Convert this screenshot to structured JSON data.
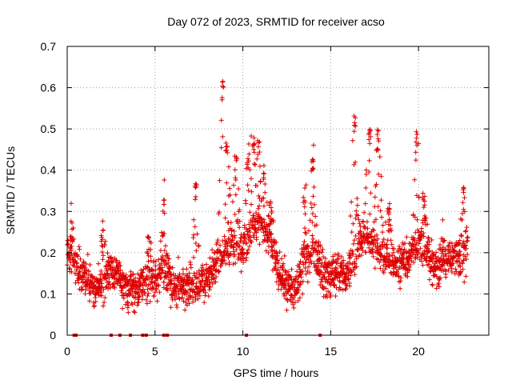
{
  "chart_data": {
    "type": "scatter",
    "title": "Day 072 of 2023, SRMTID for receiver acso",
    "xlabel": "GPS time / hours",
    "ylabel": "SRMTID / TECUs",
    "xlim": [
      0,
      24
    ],
    "ylim": [
      0,
      0.7
    ],
    "x_ticks": [
      0,
      5,
      10,
      15,
      20
    ],
    "x_tick_labels": [
      "0",
      "5",
      "10",
      "15",
      "20"
    ],
    "y_ticks": [
      0,
      0.1,
      0.2,
      0.3,
      0.4,
      0.5,
      0.6,
      0.7
    ],
    "y_tick_labels": [
      "0",
      "0.1",
      "0.2",
      "0.3",
      "0.4",
      "0.5",
      "0.6",
      "0.7"
    ],
    "grid": true,
    "marker": "plus",
    "color": "#dd0000",
    "series_name": "SRMTID (acso)",
    "baseline": [
      [
        0.0,
        0.2
      ],
      [
        0.5,
        0.17
      ],
      [
        1.0,
        0.14
      ],
      [
        1.5,
        0.12
      ],
      [
        2.0,
        0.12
      ],
      [
        2.5,
        0.16
      ],
      [
        3.0,
        0.14
      ],
      [
        3.5,
        0.11
      ],
      [
        4.0,
        0.11
      ],
      [
        4.5,
        0.13
      ],
      [
        5.0,
        0.14
      ],
      [
        5.5,
        0.15
      ],
      [
        6.0,
        0.12
      ],
      [
        6.5,
        0.12
      ],
      [
        7.0,
        0.12
      ],
      [
        7.5,
        0.12
      ],
      [
        8.0,
        0.14
      ],
      [
        8.5,
        0.18
      ],
      [
        9.0,
        0.2
      ],
      [
        9.5,
        0.22
      ],
      [
        10.0,
        0.2
      ],
      [
        10.5,
        0.26
      ],
      [
        11.0,
        0.28
      ],
      [
        11.5,
        0.24
      ],
      [
        12.0,
        0.16
      ],
      [
        12.5,
        0.12
      ],
      [
        13.0,
        0.11
      ],
      [
        13.5,
        0.18
      ],
      [
        14.0,
        0.21
      ],
      [
        14.5,
        0.15
      ],
      [
        15.0,
        0.14
      ],
      [
        15.5,
        0.15
      ],
      [
        16.0,
        0.14
      ],
      [
        16.5,
        0.2
      ],
      [
        17.0,
        0.24
      ],
      [
        17.5,
        0.22
      ],
      [
        18.0,
        0.2
      ],
      [
        18.5,
        0.17
      ],
      [
        19.0,
        0.17
      ],
      [
        19.5,
        0.19
      ],
      [
        20.0,
        0.22
      ],
      [
        20.5,
        0.2
      ],
      [
        21.0,
        0.16
      ],
      [
        21.5,
        0.18
      ],
      [
        22.0,
        0.19
      ],
      [
        22.5,
        0.18
      ],
      [
        22.8,
        0.2
      ]
    ],
    "peaks": [
      [
        0.25,
        0.28
      ],
      [
        2.0,
        0.27
      ],
      [
        4.6,
        0.25
      ],
      [
        5.5,
        0.35
      ],
      [
        7.3,
        0.38
      ],
      [
        8.85,
        0.62
      ],
      [
        9.1,
        0.48
      ],
      [
        9.6,
        0.45
      ],
      [
        10.3,
        0.47
      ],
      [
        10.6,
        0.5
      ],
      [
        10.9,
        0.49
      ],
      [
        11.2,
        0.4
      ],
      [
        11.6,
        0.33
      ],
      [
        13.5,
        0.35
      ],
      [
        14.0,
        0.45
      ],
      [
        16.35,
        0.54
      ],
      [
        17.2,
        0.52
      ],
      [
        17.7,
        0.5
      ],
      [
        18.3,
        0.32
      ],
      [
        19.9,
        0.5
      ],
      [
        20.3,
        0.33
      ],
      [
        21.4,
        0.25
      ],
      [
        22.6,
        0.36
      ]
    ],
    "zero_points": [
      0.4,
      0.5,
      2.5,
      3.0,
      3.6,
      4.3,
      4.5,
      5.5,
      5.7,
      10.2,
      14.4
    ]
  }
}
